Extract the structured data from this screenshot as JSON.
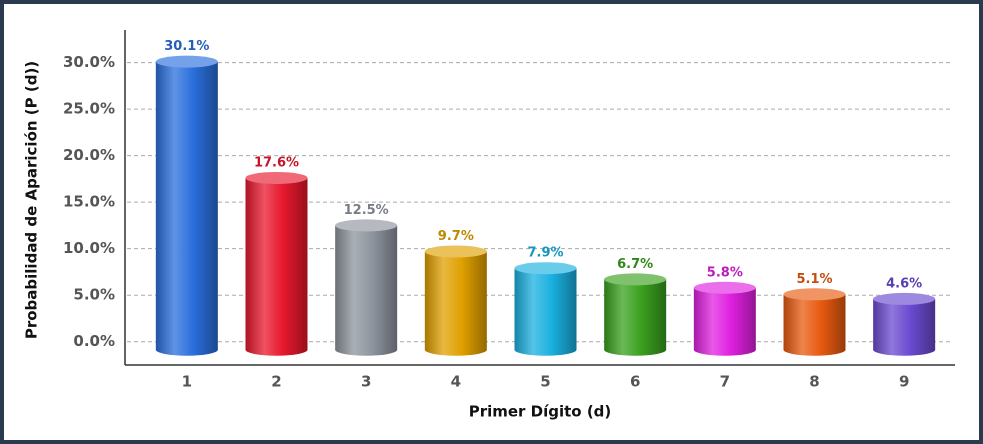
{
  "chart_data": {
    "type": "bar",
    "x_label": "Primer Dígito (d)",
    "y_label": "Probabilidad de Aparición (P (d))",
    "categories": [
      "1",
      "2",
      "3",
      "4",
      "5",
      "6",
      "7",
      "8",
      "9"
    ],
    "values": [
      30.1,
      17.6,
      12.5,
      9.7,
      7.9,
      6.7,
      5.8,
      5.1,
      4.6
    ],
    "value_labels": [
      "30.1%",
      "17.6%",
      "12.5%",
      "9.7%",
      "7.9%",
      "6.7%",
      "5.8%",
      "5.1%",
      "4.6%"
    ],
    "colors": [
      "#2a6fdc",
      "#e8182e",
      "#8e949e",
      "#e0a000",
      "#1ab0e0",
      "#3aa01e",
      "#e020e0",
      "#e85a10",
      "#6a4ad0"
    ],
    "ylim": [
      -2.5,
      33.5
    ],
    "yticks": [
      {
        "value": 0,
        "label": "0.0%"
      },
      {
        "value": 5,
        "label": "5.0%"
      },
      {
        "value": 10,
        "label": "10.0%"
      },
      {
        "value": 15,
        "label": "15.0%"
      },
      {
        "value": 20,
        "label": "20.0%"
      },
      {
        "value": 25,
        "label": "25.0%"
      },
      {
        "value": 30,
        "label": "30.0%"
      }
    ],
    "grid": true
  }
}
